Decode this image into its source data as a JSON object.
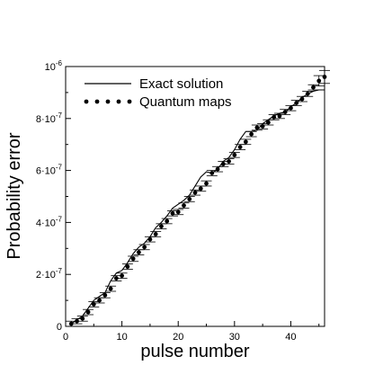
{
  "chart_data": {
    "type": "line",
    "xlabel": "pulse number",
    "ylabel": "Probability error",
    "xlim": [
      0,
      46
    ],
    "ylim": [
      0,
      1e-06
    ],
    "grid": false,
    "legend": {
      "placement": "top-left",
      "entries": [
        "Exact solution",
        "Quantum maps"
      ]
    },
    "x_ticks": [
      {
        "value": 0,
        "label": "0"
      },
      {
        "value": 10,
        "label": "10"
      },
      {
        "value": 20,
        "label": "20"
      },
      {
        "value": 30,
        "label": "30"
      },
      {
        "value": 40,
        "label": "40"
      }
    ],
    "y_ticks": [
      {
        "value": 0,
        "label": "0",
        "exp": ""
      },
      {
        "value": 2e-07,
        "label": "2·10",
        "exp": "-7"
      },
      {
        "value": 4e-07,
        "label": "4·10",
        "exp": "-7"
      },
      {
        "value": 6e-07,
        "label": "6·10",
        "exp": "-7"
      },
      {
        "value": 8e-07,
        "label": "8·10",
        "exp": "-7"
      },
      {
        "value": 1e-06,
        "label": "10",
        "exp": "-6"
      }
    ],
    "series": [
      {
        "name": "Exact solution",
        "style": "line",
        "x": [
          1,
          2,
          3,
          4,
          5,
          6,
          7,
          8,
          9,
          10,
          11,
          12,
          13,
          14,
          15,
          16,
          17,
          18,
          19,
          20,
          21,
          22,
          23,
          24,
          25,
          26,
          27,
          28,
          29,
          30,
          31,
          32,
          33,
          34,
          35,
          36,
          37,
          38,
          39,
          40,
          41,
          42,
          43,
          44,
          45,
          46
        ],
        "y": [
          1e-08,
          2.5e-08,
          4e-08,
          7e-08,
          1e-07,
          1.15e-07,
          1.3e-07,
          1.75e-07,
          2.05e-07,
          2.15e-07,
          2.45e-07,
          2.8e-07,
          3.05e-07,
          3.2e-07,
          3.45e-07,
          3.8e-07,
          4e-07,
          4.25e-07,
          4.55e-07,
          4.7e-07,
          4.85e-07,
          5.05e-07,
          5.4e-07,
          5.75e-07,
          5.95e-07,
          5.9e-07,
          6.05e-07,
          6.35e-07,
          6.5e-07,
          6.8e-07,
          7.2e-07,
          7.5e-07,
          7.5e-07,
          7.55e-07,
          7.8e-07,
          7.95e-07,
          8.1e-07,
          8.2e-07,
          8.25e-07,
          8.45e-07,
          8.6e-07,
          8.8e-07,
          8.95e-07,
          9.05e-07,
          9.1e-07,
          9.1e-07
        ]
      },
      {
        "name": "Quantum maps",
        "style": "points-with-errorbars",
        "x": [
          1,
          2,
          3,
          4,
          5,
          6,
          7,
          8,
          9,
          10,
          11,
          12,
          13,
          14,
          15,
          16,
          17,
          18,
          19,
          20,
          21,
          22,
          23,
          24,
          25,
          26,
          27,
          28,
          29,
          30,
          31,
          32,
          33,
          34,
          35,
          36,
          37,
          38,
          39,
          40,
          41,
          42,
          43,
          44,
          45,
          46
        ],
        "y": [
          1e-08,
          2e-08,
          3e-08,
          5.5e-08,
          8.5e-08,
          1e-07,
          1.2e-07,
          1.45e-07,
          1.85e-07,
          1.95e-07,
          2.3e-07,
          2.6e-07,
          2.85e-07,
          3.05e-07,
          3.35e-07,
          3.55e-07,
          3.85e-07,
          4.05e-07,
          4.35e-07,
          4.4e-07,
          4.65e-07,
          4.9e-07,
          5.15e-07,
          5.3e-07,
          5.5e-07,
          5.9e-07,
          6.05e-07,
          6.25e-07,
          6.35e-07,
          6.6e-07,
          6.9e-07,
          7.1e-07,
          7.4e-07,
          7.65e-07,
          7.7e-07,
          7.85e-07,
          8.05e-07,
          8.1e-07,
          8.25e-07,
          8.4e-07,
          8.6e-07,
          8.75e-07,
          8.95e-07,
          9.2e-07,
          9.45e-07,
          9.6e-07
        ],
        "error": [
          1e-08,
          1e-08,
          1e-08,
          1e-08,
          1e-08,
          1e-08,
          1e-08,
          1e-08,
          1e-08,
          1e-08,
          1e-08,
          1e-08,
          1e-08,
          1e-08,
          1e-08,
          1e-08,
          1e-08,
          1e-08,
          1e-08,
          1e-08,
          1e-08,
          1e-08,
          1e-08,
          1e-08,
          1e-08,
          1e-08,
          1e-08,
          1e-08,
          1e-08,
          1e-08,
          1e-08,
          1e-08,
          1e-08,
          1e-08,
          1e-08,
          1e-08,
          1e-08,
          1e-08,
          1e-08,
          1e-08,
          1e-08,
          1e-08,
          1e-08,
          1e-08,
          2e-08,
          2.5e-08
        ]
      }
    ]
  }
}
